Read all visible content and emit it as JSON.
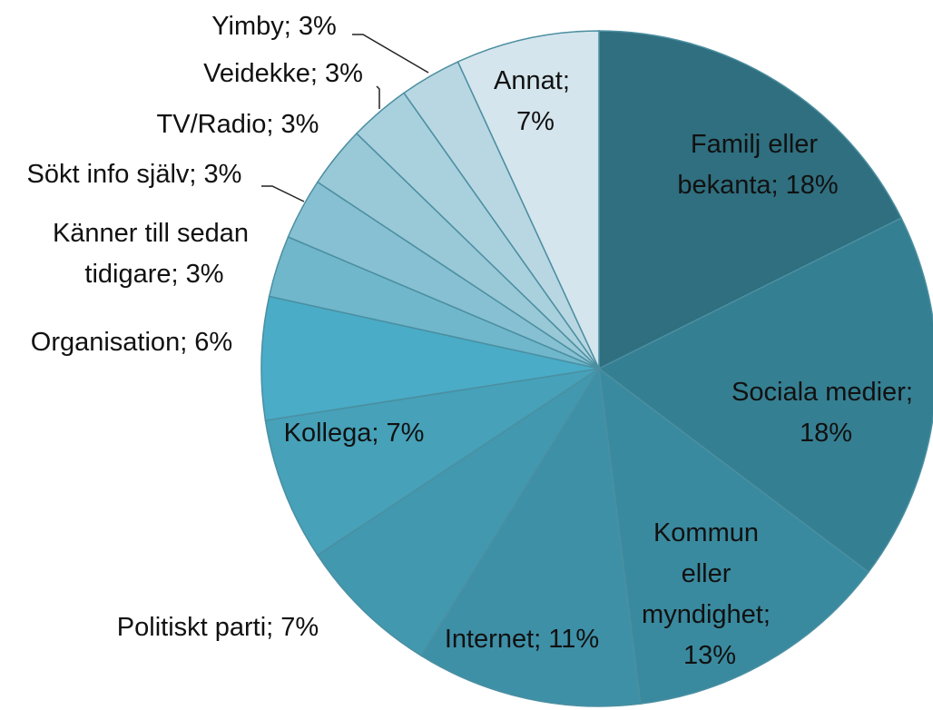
{
  "chart_data": {
    "type": "pie",
    "values": [
      18,
      18,
      13,
      11,
      7,
      7,
      6,
      3,
      3,
      3,
      3,
      3,
      7
    ],
    "value_labels": [
      "Familj eller bekanta; 18%",
      "Sociala medier; 18%",
      "Kommun eller myndighet; 13%",
      "Internet; 11%",
      "Politiskt parti; 7%",
      "Kollega; 7%",
      "Organisation; 6%",
      "Känner till sedan tidigare; 3%",
      "Sökt info själv; 3%",
      "TV/Radio; 3%",
      "Veidekke; 3%",
      "Yimby; 3%",
      "Annat; 7%"
    ],
    "colors": [
      "#2f6f7f",
      "#357f92",
      "#3a8a9f",
      "#3e90a7",
      "#4298ae",
      "#46a1b9",
      "#4aacc7",
      "#70b7cc",
      "#86c0d2",
      "#99c8d7",
      "#a9d0dd",
      "#b9d7e2",
      "#d4e5ed"
    ]
  }
}
